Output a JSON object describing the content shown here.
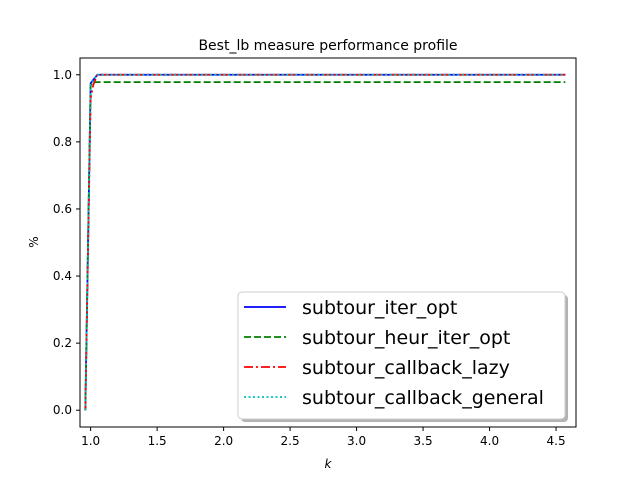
{
  "chart_data": {
    "type": "line",
    "title": "Best_lb measure performance profile",
    "xlabel": "k",
    "ylabel": "%",
    "xlim": [
      0.92,
      4.65
    ],
    "ylim": [
      -0.05,
      1.05
    ],
    "xticks": [
      1.0,
      1.5,
      2.0,
      2.5,
      3.0,
      3.5,
      4.0,
      4.5
    ],
    "xtick_labels": [
      "1.0",
      "1.5",
      "2.0",
      "2.5",
      "3.0",
      "3.5",
      "4.0",
      "4.5"
    ],
    "yticks": [
      0.0,
      0.2,
      0.4,
      0.6,
      0.8,
      1.0
    ],
    "ytick_labels": [
      "0.0",
      "0.2",
      "0.4",
      "0.6",
      "0.8",
      "1.0"
    ],
    "grid": false,
    "legend_position": "lower-right",
    "series": [
      {
        "name": "subtour_iter_opt",
        "color": "#0000ff",
        "style": "solid",
        "x": [
          0.96,
          1.0,
          1.03,
          1.05,
          4.57
        ],
        "y": [
          0.0,
          0.975,
          0.99,
          1.0,
          1.0
        ]
      },
      {
        "name": "subtour_heur_iter_opt",
        "color": "#008000",
        "style": "dashed",
        "x": [
          0.96,
          1.0,
          1.01,
          4.57
        ],
        "y": [
          0.0,
          0.965,
          0.978,
          0.978
        ]
      },
      {
        "name": "subtour_callback_lazy",
        "color": "#ff0000",
        "style": "dashdot",
        "x": [
          0.96,
          1.0,
          1.02,
          1.05,
          4.57
        ],
        "y": [
          0.0,
          0.93,
          0.97,
          1.0,
          1.0
        ]
      },
      {
        "name": "subtour_callback_general",
        "color": "#00bfbf",
        "style": "dotted",
        "x": [
          0.96,
          1.0,
          1.03,
          1.05,
          4.57
        ],
        "y": [
          0.0,
          0.97,
          0.99,
          1.0,
          1.0
        ]
      }
    ]
  }
}
